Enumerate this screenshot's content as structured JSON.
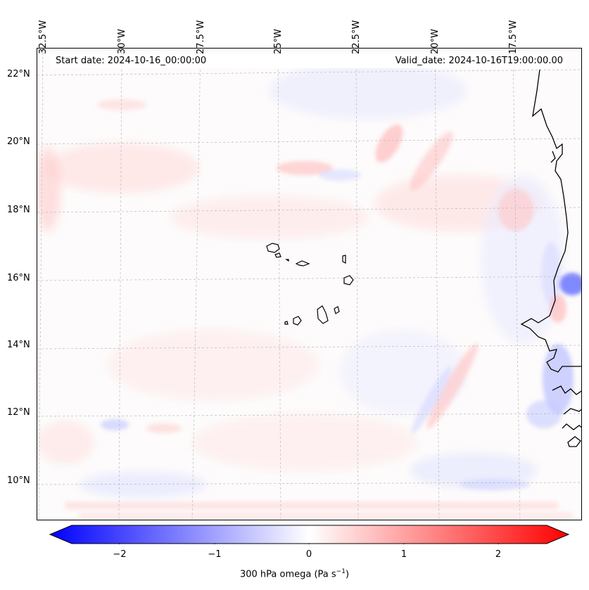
{
  "header": {
    "start_date": "Start date: 2024-10-16_00:00:00",
    "valid_date": "Valid_date: 2024-10-16T19:00:00.00"
  },
  "axes": {
    "lon_labels": [
      "32.5°W",
      "30°W",
      "27.5°W",
      "25°W",
      "22.5°W",
      "20°W",
      "17.5°W"
    ],
    "lat_labels": [
      "22°N",
      "20°N",
      "18°N",
      "16°N",
      "14°N",
      "12°N",
      "10°N"
    ]
  },
  "colorbar": {
    "ticks": [
      "−2",
      "−1",
      "0",
      "1",
      "2"
    ],
    "label_main": "300 hPa omega (Pa s",
    "label_sup": "−1",
    "label_end": ")",
    "range": [
      -2.6,
      2.6
    ],
    "colors": {
      "negative": "#0000ff",
      "zero": "#ffffff",
      "positive": "#ff0000"
    }
  },
  "colors": {
    "frame": "#000000",
    "gridline": "#b8b8b8",
    "coastline": "#000000"
  }
}
